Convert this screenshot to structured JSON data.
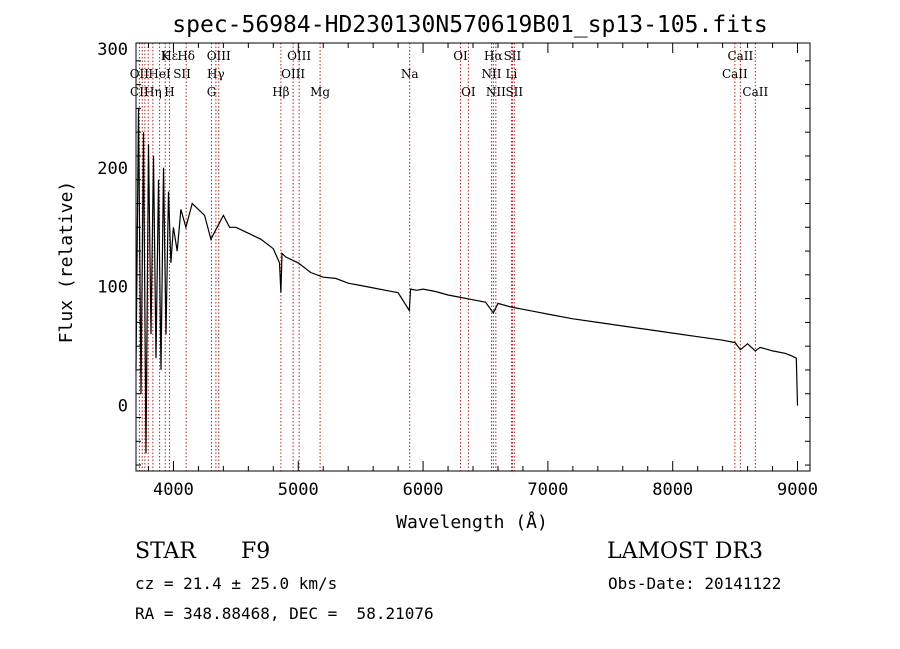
{
  "chart_data": {
    "type": "line",
    "title": "spec-56984-HD230130N570619B01_sp13-105.fits",
    "xlabel": "Wavelength (Å)",
    "ylabel": "Flux (relative)",
    "xlim": [
      3700,
      9100
    ],
    "ylim": [
      -55,
      305
    ],
    "xticks": [
      4000,
      5000,
      6000,
      7000,
      8000,
      9000
    ],
    "yticks": [
      0,
      100,
      200,
      300
    ],
    "series": [
      {
        "name": "spectrum",
        "x": [
          3700,
          3720,
          3740,
          3760,
          3780,
          3800,
          3820,
          3840,
          3860,
          3880,
          3900,
          3920,
          3940,
          3960,
          3980,
          4000,
          4030,
          4060,
          4100,
          4150,
          4200,
          4250,
          4300,
          4350,
          4400,
          4450,
          4500,
          4600,
          4700,
          4800,
          4850,
          4861,
          4870,
          4900,
          5000,
          5100,
          5200,
          5300,
          5400,
          5500,
          5600,
          5700,
          5800,
          5890,
          5900,
          5950,
          6000,
          6100,
          6200,
          6300,
          6400,
          6500,
          6563,
          6600,
          6700,
          6800,
          6900,
          7000,
          7200,
          7400,
          7600,
          7800,
          8000,
          8200,
          8400,
          8500,
          8542,
          8600,
          8662,
          8700,
          8800,
          8900,
          8950,
          8990,
          9000
        ],
        "y": [
          30,
          250,
          10,
          230,
          -40,
          220,
          60,
          210,
          40,
          190,
          30,
          200,
          60,
          180,
          120,
          150,
          130,
          165,
          150,
          170,
          165,
          160,
          140,
          150,
          160,
          150,
          150,
          145,
          140,
          132,
          120,
          95,
          128,
          125,
          120,
          112,
          108,
          107,
          103,
          101,
          99,
          97,
          95,
          80,
          98,
          97,
          98,
          96,
          93,
          91,
          89,
          87,
          78,
          86,
          83,
          81,
          79,
          77,
          73,
          70,
          67,
          64,
          61,
          58,
          55,
          53,
          47,
          52,
          46,
          49,
          46,
          44,
          42,
          40,
          0
        ]
      }
    ],
    "lines": [
      {
        "name": "Hε",
        "wl": 3970,
        "row": 1
      },
      {
        "name": "K",
        "wl": 3934,
        "row": 1
      },
      {
        "name": "Hδ",
        "wl": 4102,
        "row": 1
      },
      {
        "name": "OIII",
        "wl": 4363,
        "row": 1
      },
      {
        "name": "OIII",
        "wl": 5007,
        "row": 1
      },
      {
        "name": "OI",
        "wl": 6300,
        "row": 1
      },
      {
        "name": "Hα",
        "wl": 6563,
        "row": 1
      },
      {
        "name": "SII",
        "wl": 6716,
        "row": 1
      },
      {
        "name": "CaII",
        "wl": 8542,
        "row": 1
      },
      {
        "name": "OII",
        "wl": 3727,
        "row": 2
      },
      {
        "name": "HeI",
        "wl": 3889,
        "row": 2
      },
      {
        "name": "SII",
        "wl": 4069,
        "row": 2
      },
      {
        "name": "Hγ",
        "wl": 4340,
        "row": 2
      },
      {
        "name": "OIII",
        "wl": 4959,
        "row": 2
      },
      {
        "name": "Na",
        "wl": 5893,
        "row": 2
      },
      {
        "name": "NII",
        "wl": 6548,
        "row": 2
      },
      {
        "name": "Li",
        "wl": 6708,
        "row": 2
      },
      {
        "name": "CaII",
        "wl": 8498,
        "row": 2
      },
      {
        "name": "CII",
        "wl": 3727,
        "row": 3
      },
      {
        "name": "Hη",
        "wl": 3835,
        "row": 3
      },
      {
        "name": "H",
        "wl": 3968,
        "row": 3
      },
      {
        "name": "G",
        "wl": 4305,
        "row": 3
      },
      {
        "name": "Hβ",
        "wl": 4861,
        "row": 3
      },
      {
        "name": "Mg",
        "wl": 5175,
        "row": 3
      },
      {
        "name": "OI",
        "wl": 6363,
        "row": 3
      },
      {
        "name": "NII",
        "wl": 6583,
        "row": 3
      },
      {
        "name": "SII",
        "wl": 6731,
        "row": 3
      },
      {
        "name": "CaII",
        "wl": 8662,
        "row": 3
      }
    ],
    "line_marks_wl": [
      3727,
      3750,
      3771,
      3798,
      3835,
      3889,
      3934,
      3968,
      4102,
      4305,
      4340,
      4363,
      4861,
      4959,
      5007,
      5175,
      5893,
      6300,
      6363,
      6548,
      6563,
      6583,
      6708,
      6716,
      6731,
      8498,
      8542,
      8662
    ]
  },
  "info": {
    "class_label": "STAR",
    "subclass": "F9",
    "survey": "LAMOST DR3",
    "cz": "cz = 21.4 ± 25.0 km/s",
    "obs_date": "Obs-Date: 20141122",
    "radec": "RA = 348.88468, DEC =  58.21076"
  },
  "colors": {
    "line_marker": "#b22222",
    "spectrum": "#000000"
  }
}
